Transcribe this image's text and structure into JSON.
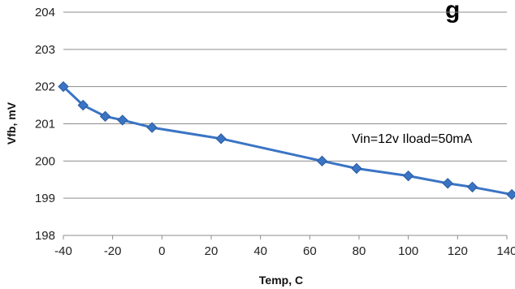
{
  "chart_data": {
    "type": "line",
    "title_fragment": "g",
    "xlabel": "Temp, C",
    "ylabel": "Vfb, mV",
    "xlim": [
      -40,
      140
    ],
    "ylim": [
      198,
      204
    ],
    "x_ticks": [
      -40,
      -20,
      0,
      20,
      40,
      60,
      80,
      100,
      120,
      140
    ],
    "y_ticks": [
      198,
      199,
      200,
      201,
      202,
      203,
      204
    ],
    "grid": "horizontal",
    "annotation": "Vin=12v Iload=50mA",
    "series": [
      {
        "color": "#3a74c4",
        "marker": "diamond",
        "x": [
          -40,
          -32,
          -23,
          -16,
          -4,
          24,
          65,
          79,
          100,
          116,
          126,
          142
        ],
        "y": [
          202.0,
          201.5,
          201.2,
          201.1,
          200.9,
          200.6,
          200.0,
          199.8,
          199.6,
          199.4,
          199.3,
          199.1
        ]
      }
    ]
  }
}
